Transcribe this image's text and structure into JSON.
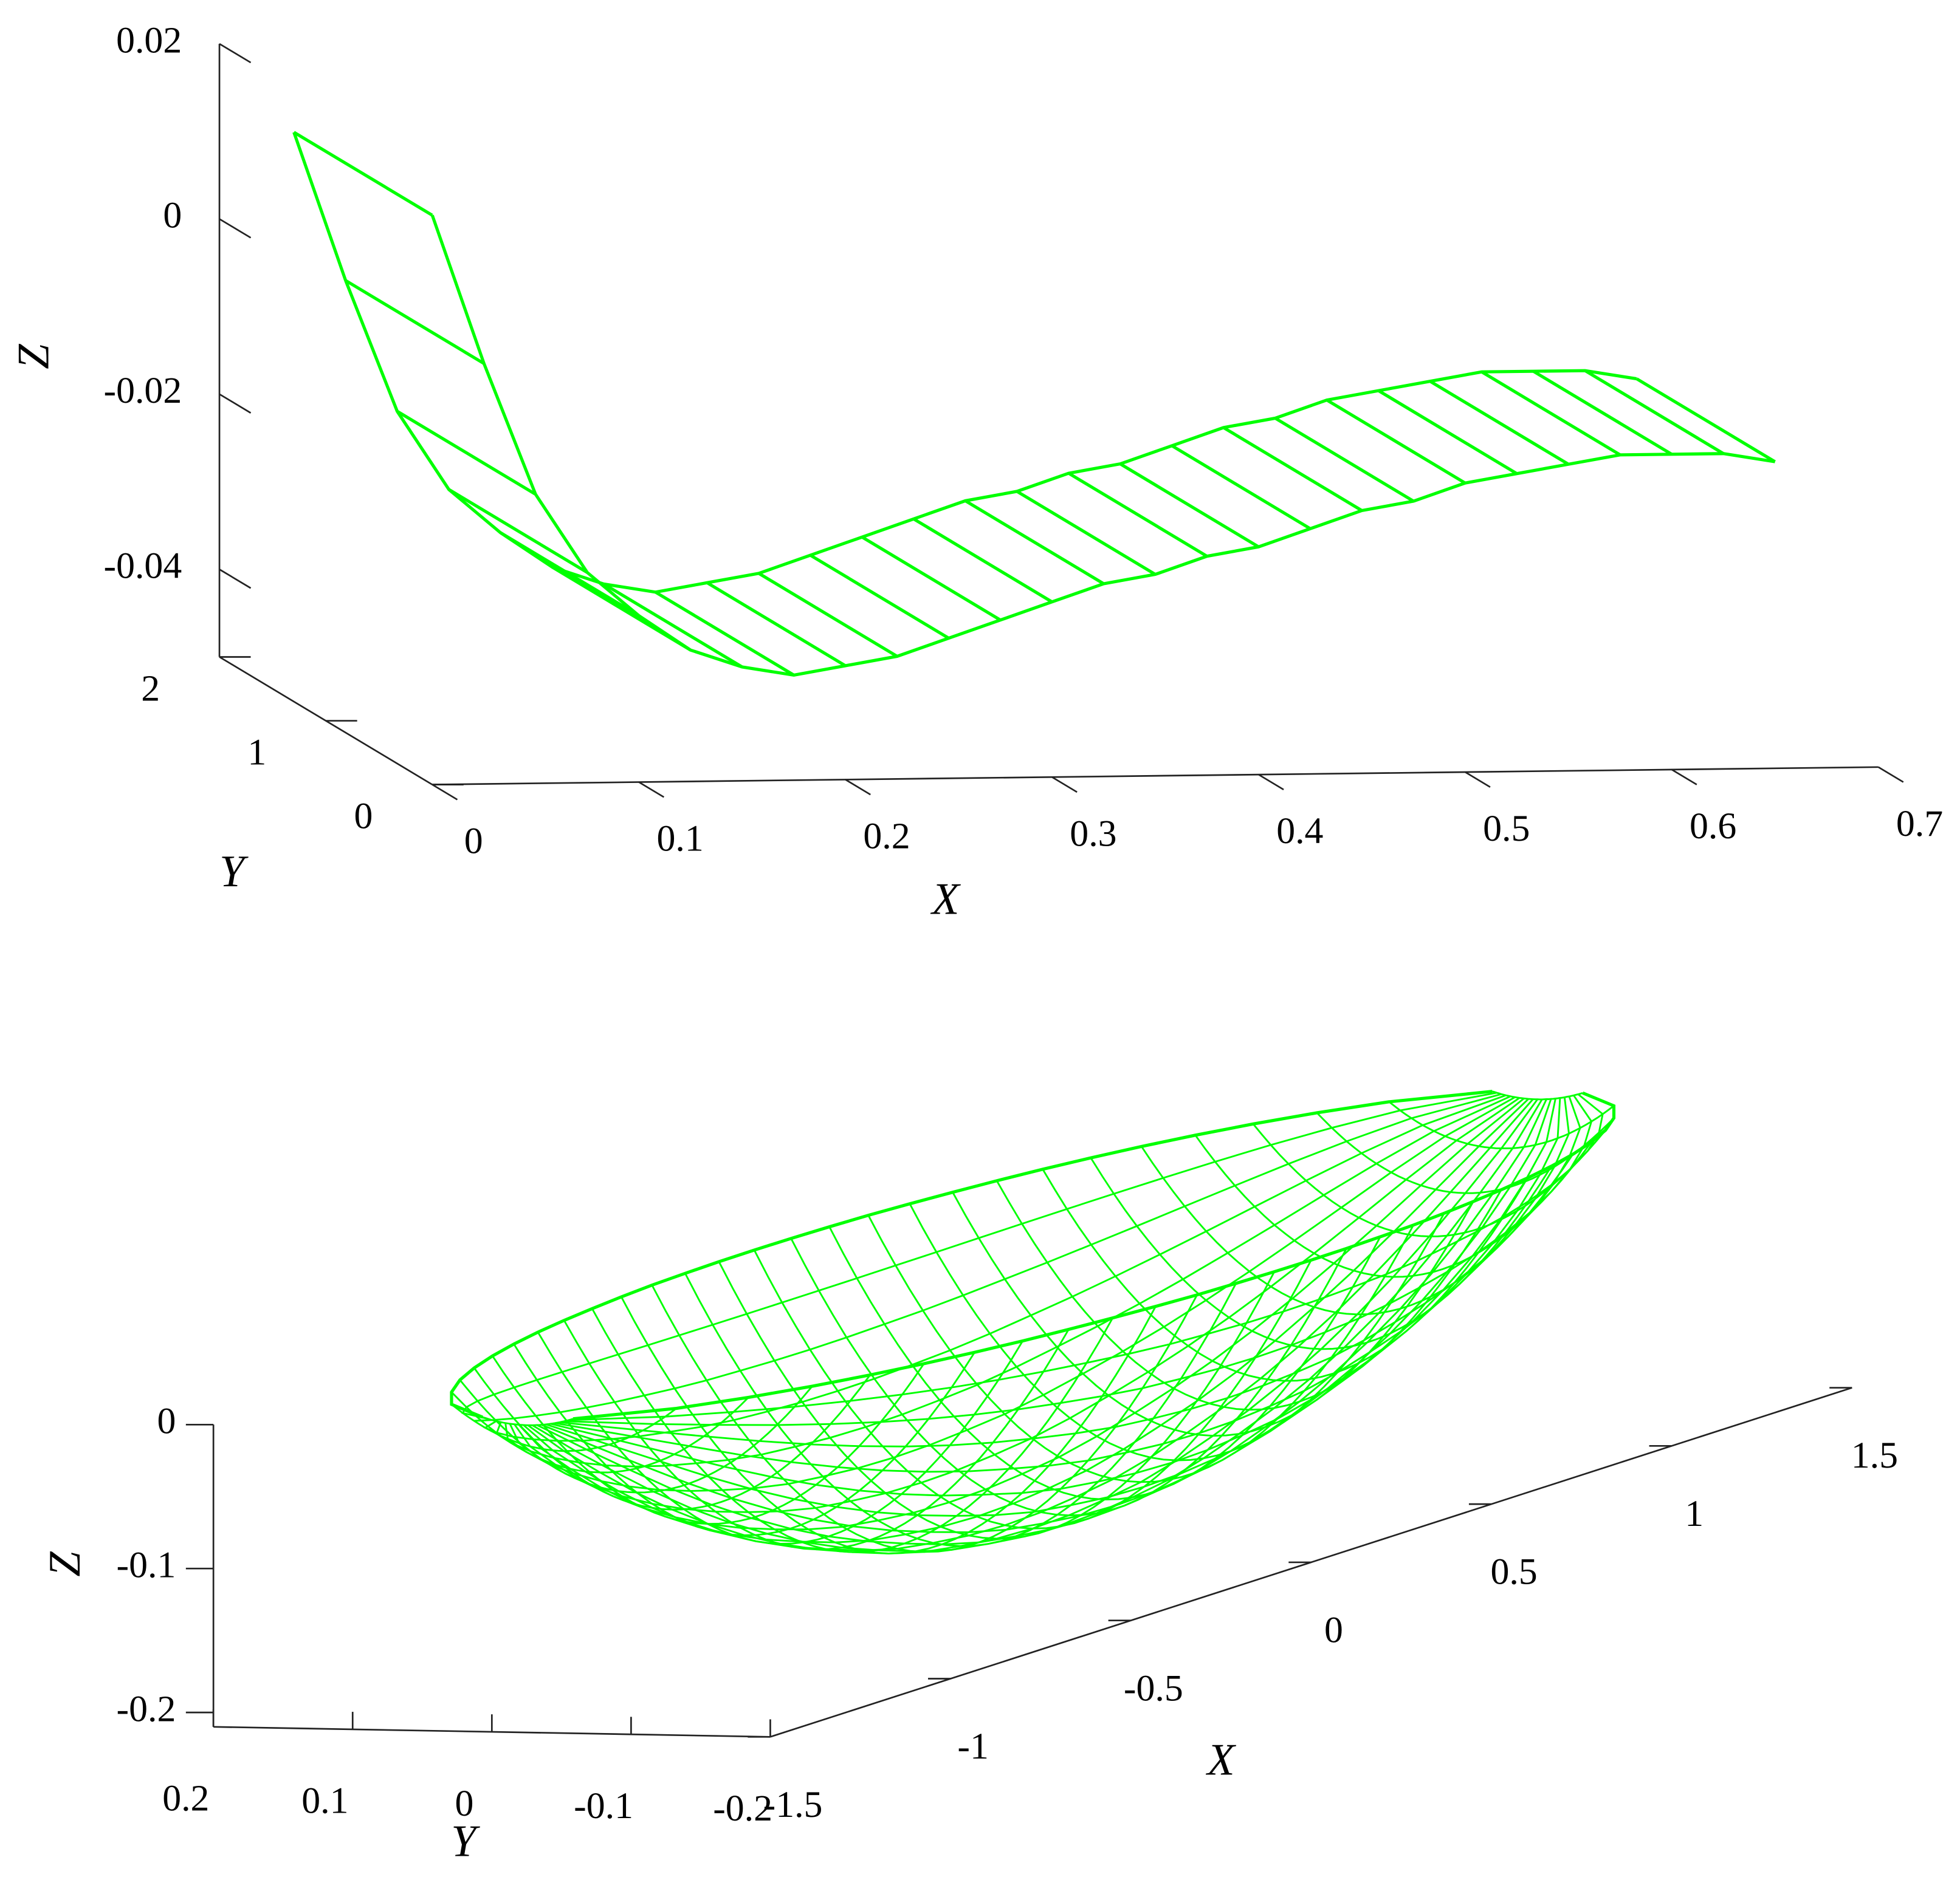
{
  "chart_data": [
    {
      "type": "ribbon3d",
      "xlabel": "X",
      "ylabel": "Y",
      "zlabel": "Z",
      "color": "#00ff00",
      "xlim": [
        0,
        0.7
      ],
      "ylim": [
        0,
        2
      ],
      "zlim": [
        -0.05,
        0.02
      ],
      "xticks": [
        0,
        0.1,
        0.2,
        0.3,
        0.4,
        0.5,
        0.6,
        0.7
      ],
      "yticks": [
        0,
        1,
        2
      ],
      "zticks": [
        -0.04,
        -0.02,
        0,
        0.02
      ],
      "x": [
        0,
        0.025,
        0.05,
        0.075,
        0.1,
        0.125,
        0.15,
        0.175,
        0.2,
        0.225,
        0.25,
        0.275,
        0.3,
        0.325,
        0.35,
        0.375,
        0.4,
        0.425,
        0.45,
        0.475,
        0.5,
        0.525,
        0.55,
        0.575,
        0.6,
        0.625,
        0.65
      ],
      "z": [
        0.015,
        -0.002,
        -0.017,
        -0.026,
        -0.031,
        -0.035,
        -0.037,
        -0.038,
        -0.037,
        -0.036,
        -0.034,
        -0.032,
        -0.03,
        -0.028,
        -0.027,
        -0.025,
        -0.024,
        -0.022,
        -0.02,
        -0.019,
        -0.017,
        -0.016,
        -0.015,
        -0.014,
        -0.014,
        -0.014,
        -0.015
      ]
    },
    {
      "type": "bowl3d",
      "xlabel": "X",
      "ylabel": "Y",
      "zlabel": "Z",
      "color": "#00ff00",
      "xlim": [
        -1.5,
        1.5
      ],
      "ylim": [
        -0.2,
        0.2
      ],
      "zlim": [
        -0.21,
        0
      ],
      "xticks": [
        -1.5,
        -1,
        -0.5,
        0,
        0.5,
        1,
        1.5
      ],
      "yticks": [
        -0.2,
        -0.1,
        0,
        0.1,
        0.2
      ],
      "zticks": [
        -0.2,
        -0.1,
        0
      ],
      "x": [
        -1.4,
        -1.3,
        -1.2,
        -1.1,
        -1.0,
        -0.9,
        -0.8,
        -0.7,
        -0.6,
        -0.5,
        -0.4,
        -0.3,
        -0.2,
        -0.1,
        0,
        0.1,
        0.2,
        0.3,
        0.4,
        0.5,
        0.6,
        0.7,
        0.8,
        0.9,
        1.0,
        1.1,
        1.2,
        1.3,
        1.4
      ],
      "z": [
        -0.005,
        -0.031,
        -0.054,
        -0.076,
        -0.096,
        -0.114,
        -0.13,
        -0.144,
        -0.156,
        -0.166,
        -0.175,
        -0.182,
        -0.186,
        -0.189,
        -0.19,
        -0.189,
        -0.186,
        -0.182,
        -0.175,
        -0.166,
        -0.156,
        -0.144,
        -0.13,
        -0.114,
        -0.096,
        -0.076,
        -0.054,
        -0.031,
        -0.005
      ]
    }
  ]
}
